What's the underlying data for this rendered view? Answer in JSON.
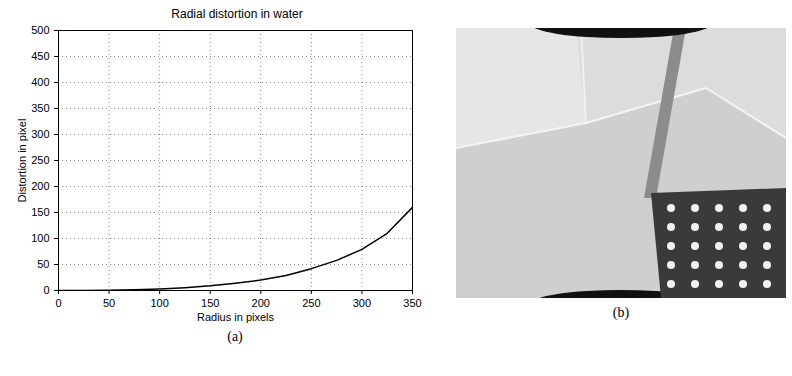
{
  "chart_data": {
    "type": "line",
    "title": "Radial distortion in water",
    "x_label": "Radius in pixels",
    "y_label": "Distortion in pixel",
    "x": [
      0,
      25,
      50,
      75,
      100,
      125,
      150,
      175,
      200,
      225,
      250,
      275,
      300,
      325,
      350
    ],
    "values": [
      0,
      0.2,
      0.5,
      1.5,
      3,
      5.5,
      9,
      14,
      20,
      29,
      42,
      58,
      79,
      110,
      160
    ],
    "color": "#000000",
    "xlim": [
      0,
      350
    ],
    "xticks": [
      0,
      50,
      100,
      150,
      200,
      250,
      300,
      350
    ],
    "ylim": [
      0,
      500
    ],
    "yticks": [
      0,
      50,
      100,
      150,
      200,
      250,
      300,
      350,
      400,
      450,
      500
    ],
    "grid": true,
    "caption": "(a)"
  },
  "image": {
    "caption": "(b)"
  }
}
